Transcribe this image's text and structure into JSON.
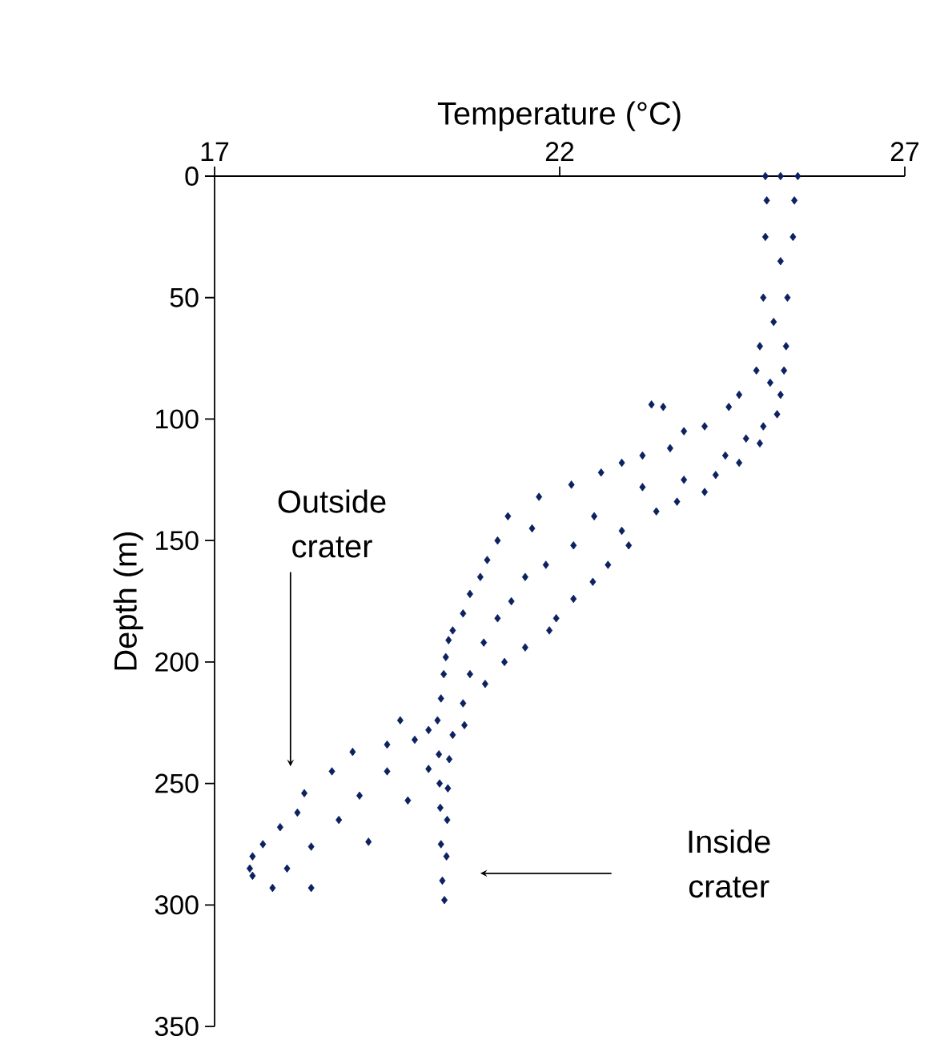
{
  "chart_data": {
    "type": "scatter",
    "xlabel": "Temperature (°C)",
    "ylabel": "Depth (m)",
    "xlim": [
      17,
      27
    ],
    "xticks": [
      17,
      22,
      27
    ],
    "ylim": [
      350,
      0
    ],
    "yticks": [
      0,
      50,
      100,
      150,
      200,
      250,
      300,
      350
    ],
    "grid": false,
    "marker": "diamond",
    "annotations": [
      "Outside crater",
      "Inside crater"
    ],
    "series": [
      {
        "color": "#0b2160",
        "x": [
          24.98,
          25.2,
          25.45,
          25.0,
          25.4,
          24.98,
          25.38,
          25.2,
          24.95,
          25.3,
          25.1,
          24.9,
          25.28,
          24.85,
          25.25,
          25.05,
          24.6,
          25.2,
          24.45,
          25.15,
          24.1,
          24.95,
          23.33,
          23.5,
          23.8,
          24.7,
          23.6,
          24.9,
          23.2,
          24.4,
          22.9,
          24.6,
          22.6,
          24.26,
          22.17,
          23.8,
          23.2,
          24.1,
          21.7,
          23.7,
          21.25,
          22.5,
          23.4,
          21.6,
          22.9,
          21.1,
          22.2,
          23.0,
          20.95,
          21.8,
          22.7,
          20.85,
          21.5,
          22.48,
          20.7,
          21.3,
          22.2,
          20.6,
          21.1,
          21.95,
          20.45,
          21.85,
          20.39,
          20.9,
          21.5,
          20.35,
          21.2,
          20.32,
          20.7,
          20.92,
          20.28,
          20.6,
          20.23,
          20.62,
          20.45,
          20.25,
          20.4,
          20.26,
          20.38,
          20.27,
          20.37,
          20.28,
          20.36,
          20.3,
          20.33,
          20.1,
          19.69,
          19.9,
          20.1,
          19.5,
          19.0,
          19.5,
          19.8,
          18.7,
          18.3,
          19.1,
          19.23,
          18.2,
          18.8,
          17.95,
          18.4,
          17.7,
          17.55,
          18.4,
          17.51,
          17.84,
          18.05,
          17.55
        ],
        "values": [
          0,
          0,
          0,
          10,
          10,
          25,
          25,
          35,
          50,
          50,
          60,
          70,
          70,
          80,
          80,
          85,
          90,
          90,
          95,
          98,
          103,
          103,
          94,
          95,
          105,
          108,
          112,
          110,
          115,
          115,
          118,
          118,
          122,
          123,
          127,
          125,
          128,
          130,
          132,
          134,
          140,
          140,
          138,
          145,
          146,
          150,
          152,
          152,
          158,
          160,
          160,
          165,
          165,
          167,
          172,
          175,
          174,
          180,
          182,
          182,
          187,
          187,
          191,
          192,
          194,
          198,
          200,
          205,
          205,
          209,
          215,
          217,
          224,
          226,
          230,
          238,
          240,
          250,
          252,
          260,
          265,
          275,
          280,
          290,
          298,
          228,
          224,
          232,
          244,
          234,
          237,
          245,
          257,
          245,
          254,
          255,
          274,
          262,
          265,
          268,
          276,
          275,
          280,
          293,
          285,
          293,
          285,
          288
        ]
      }
    ]
  }
}
